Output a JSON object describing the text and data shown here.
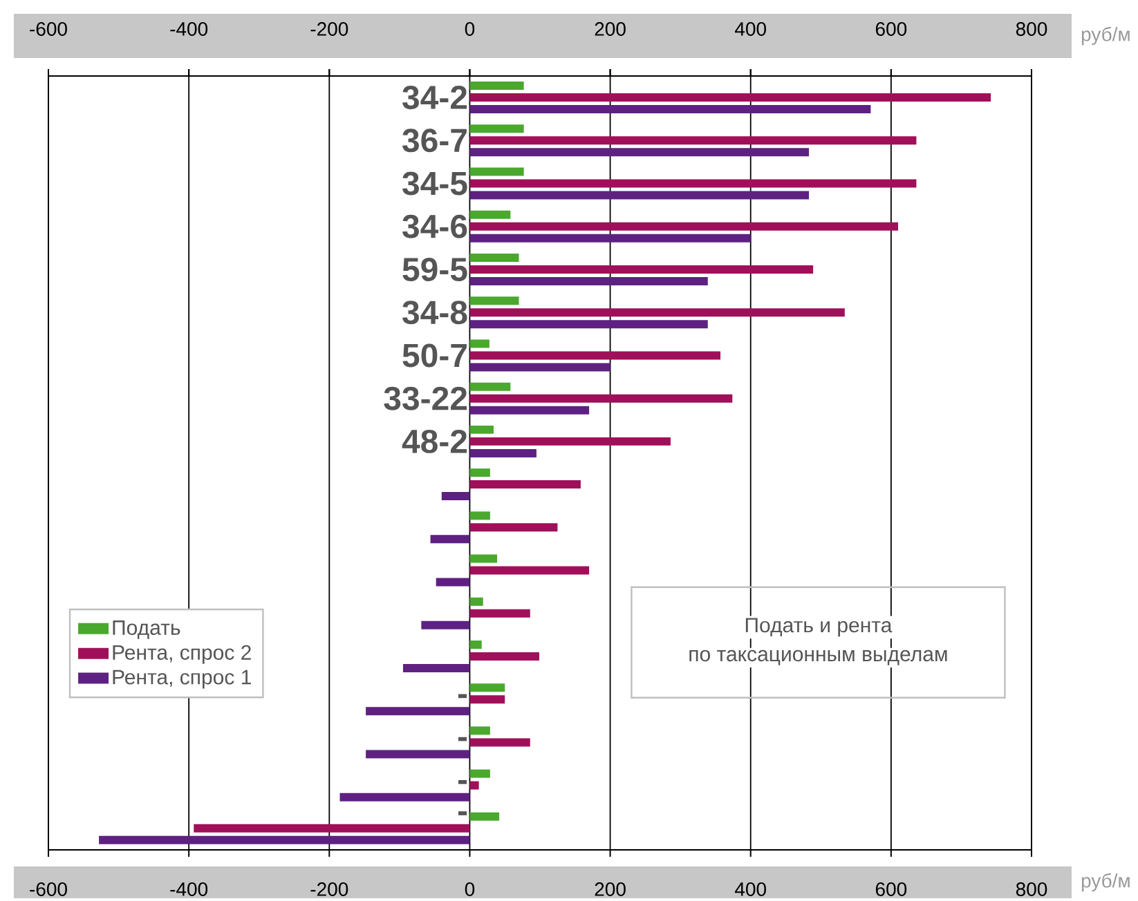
{
  "chart_data": {
    "type": "bar",
    "orientation": "horizontal",
    "categories": [
      "34-2",
      "36-7",
      "34-5",
      "34-6",
      "59-5",
      "34-8",
      "50-7",
      "33-22",
      "48-2",
      null,
      null,
      null,
      null,
      null,
      "-",
      "-",
      "-",
      "-"
    ],
    "series": [
      {
        "name": "Подать",
        "color": "#4aa82e",
        "values": [
          77,
          77,
          77,
          58,
          70,
          70,
          28,
          58,
          34,
          29,
          29,
          39,
          19,
          17,
          50,
          29,
          29,
          42
        ]
      },
      {
        "name": "Рента, спрос 2",
        "color": "#a0105a",
        "values": [
          742,
          636,
          636,
          610,
          489,
          534,
          357,
          374,
          286,
          158,
          125,
          170,
          86,
          99,
          50,
          86,
          13,
          -393
        ]
      },
      {
        "name": "Рента, спрос 1",
        "color": "#5e2181",
        "values": [
          571,
          483,
          483,
          400,
          339,
          339,
          200,
          170,
          95,
          -40,
          -56,
          -48,
          -69,
          -95,
          -148,
          -148,
          -185,
          -528
        ]
      }
    ],
    "xlim": [
      -600,
      800
    ],
    "xticks": [
      -600,
      -400,
      -200,
      0,
      200,
      400,
      600,
      800
    ],
    "x2lim": [
      -600,
      800
    ],
    "x2ticks": [
      -600,
      -400,
      -200,
      0,
      200,
      400,
      600,
      800
    ],
    "xlabel": "руб/м",
    "x2label": "руб/м",
    "annotations": [
      "Подать и рента",
      "по таксационным выделам"
    ],
    "grid": "x",
    "legend": "left"
  }
}
